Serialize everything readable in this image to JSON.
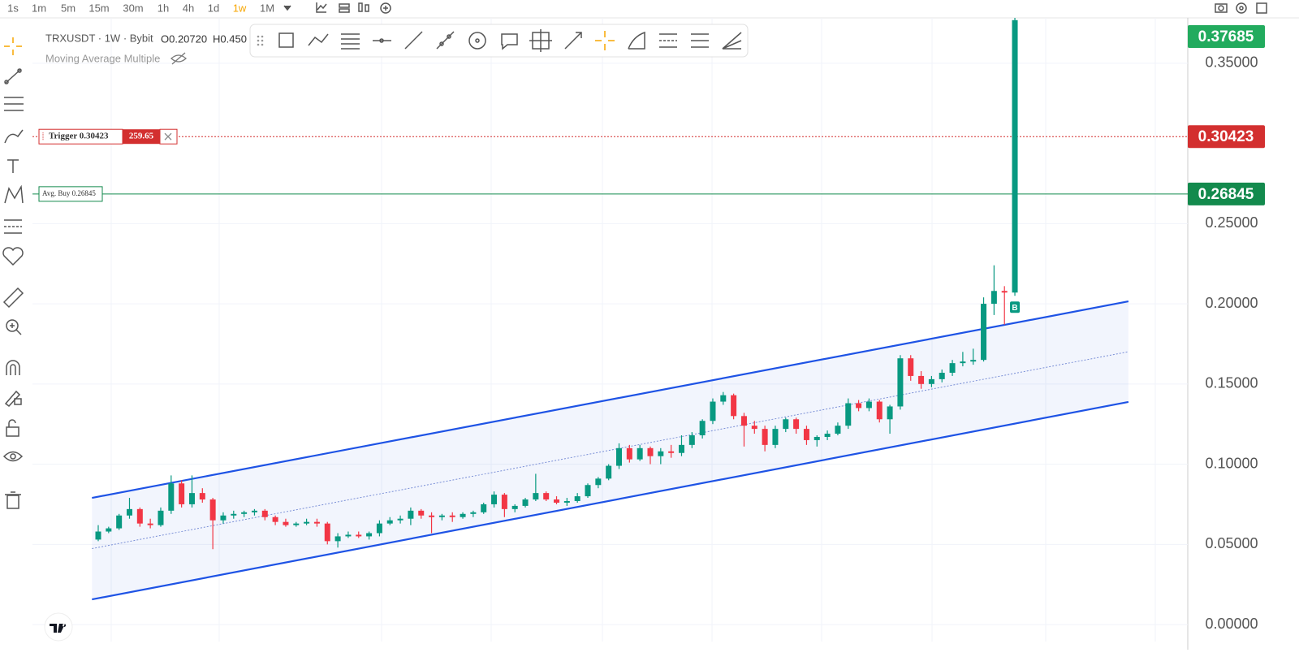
{
  "toolbar": {
    "intervals": [
      "1s",
      "1m",
      "5m",
      "15m",
      "30m",
      "1h",
      "4h",
      "1d",
      "1w",
      "1M"
    ],
    "active_interval": 8
  },
  "legend": {
    "symbol": "TRXUSDT · 1W · Bybit",
    "ohlc_text": [
      "O0.20720",
      "H0.450"
    ],
    "indicator": "Moving Average Multiple"
  },
  "chart_data": {
    "type": "candlestick",
    "up_color": "#089981",
    "down_color": "#f23645",
    "ylim": [
      -0.0106,
      0.3732
    ],
    "yticks": [
      {
        "value": 0,
        "label": "0.00000"
      },
      {
        "value": 0.05,
        "label": "0.05000"
      },
      {
        "value": 0.1,
        "label": "0.10000"
      },
      {
        "value": 0.15,
        "label": "0.15000"
      },
      {
        "value": 0.2,
        "label": "0.20000"
      },
      {
        "value": 0.25,
        "label": "0.25000"
      },
      {
        "value": 0.35,
        "label": "0.35000"
      }
    ],
    "grid": true,
    "ohlc": [
      [
        0.053,
        0.062,
        0.052,
        0.058
      ],
      [
        0.058,
        0.061,
        0.057,
        0.06
      ],
      [
        0.06,
        0.069,
        0.059,
        0.068
      ],
      [
        0.068,
        0.079,
        0.066,
        0.072
      ],
      [
        0.072,
        0.073,
        0.061,
        0.063
      ],
      [
        0.063,
        0.066,
        0.06,
        0.062
      ],
      [
        0.062,
        0.073,
        0.061,
        0.071
      ],
      [
        0.071,
        0.093,
        0.069,
        0.088
      ],
      [
        0.088,
        0.09,
        0.073,
        0.075
      ],
      [
        0.075,
        0.093,
        0.073,
        0.082
      ],
      [
        0.082,
        0.085,
        0.076,
        0.078
      ],
      [
        0.078,
        0.079,
        0.047,
        0.065
      ],
      [
        0.065,
        0.07,
        0.063,
        0.068
      ],
      [
        0.068,
        0.071,
        0.066,
        0.069
      ],
      [
        0.069,
        0.071,
        0.067,
        0.07
      ],
      [
        0.07,
        0.072,
        0.068,
        0.071
      ],
      [
        0.071,
        0.072,
        0.065,
        0.067
      ],
      [
        0.067,
        0.068,
        0.062,
        0.064
      ],
      [
        0.064,
        0.066,
        0.061,
        0.062
      ],
      [
        0.062,
        0.064,
        0.061,
        0.063
      ],
      [
        0.063,
        0.066,
        0.062,
        0.064
      ],
      [
        0.064,
        0.066,
        0.061,
        0.063
      ],
      [
        0.063,
        0.064,
        0.05,
        0.052
      ],
      [
        0.052,
        0.057,
        0.048,
        0.055
      ],
      [
        0.055,
        0.058,
        0.054,
        0.056
      ],
      [
        0.056,
        0.058,
        0.054,
        0.055
      ],
      [
        0.055,
        0.058,
        0.053,
        0.057
      ],
      [
        0.057,
        0.065,
        0.055,
        0.063
      ],
      [
        0.063,
        0.067,
        0.062,
        0.065
      ],
      [
        0.065,
        0.068,
        0.063,
        0.066
      ],
      [
        0.066,
        0.073,
        0.062,
        0.071
      ],
      [
        0.071,
        0.072,
        0.066,
        0.068
      ],
      [
        0.068,
        0.07,
        0.057,
        0.067
      ],
      [
        0.067,
        0.069,
        0.065,
        0.068
      ],
      [
        0.068,
        0.07,
        0.064,
        0.067
      ],
      [
        0.067,
        0.07,
        0.066,
        0.069
      ],
      [
        0.069,
        0.071,
        0.067,
        0.07
      ],
      [
        0.07,
        0.076,
        0.069,
        0.075
      ],
      [
        0.075,
        0.083,
        0.073,
        0.081
      ],
      [
        0.081,
        0.082,
        0.067,
        0.072
      ],
      [
        0.072,
        0.075,
        0.07,
        0.074
      ],
      [
        0.074,
        0.079,
        0.073,
        0.078
      ],
      [
        0.078,
        0.094,
        0.077,
        0.082
      ],
      [
        0.082,
        0.083,
        0.077,
        0.078
      ],
      [
        0.078,
        0.08,
        0.075,
        0.076
      ],
      [
        0.076,
        0.079,
        0.074,
        0.077
      ],
      [
        0.077,
        0.082,
        0.076,
        0.08
      ],
      [
        0.08,
        0.088,
        0.079,
        0.087
      ],
      [
        0.087,
        0.092,
        0.085,
        0.091
      ],
      [
        0.091,
        0.1,
        0.09,
        0.099
      ],
      [
        0.099,
        0.113,
        0.097,
        0.11
      ],
      [
        0.11,
        0.112,
        0.101,
        0.103
      ],
      [
        0.103,
        0.112,
        0.102,
        0.11
      ],
      [
        0.11,
        0.111,
        0.1,
        0.105
      ],
      [
        0.105,
        0.11,
        0.1,
        0.108
      ],
      [
        0.108,
        0.112,
        0.104,
        0.107
      ],
      [
        0.107,
        0.118,
        0.105,
        0.112
      ],
      [
        0.112,
        0.12,
        0.11,
        0.118
      ],
      [
        0.118,
        0.128,
        0.116,
        0.127
      ],
      [
        0.127,
        0.141,
        0.125,
        0.139
      ],
      [
        0.139,
        0.145,
        0.137,
        0.143
      ],
      [
        0.143,
        0.144,
        0.128,
        0.13
      ],
      [
        0.13,
        0.132,
        0.111,
        0.124
      ],
      [
        0.124,
        0.127,
        0.119,
        0.122
      ],
      [
        0.122,
        0.124,
        0.108,
        0.112
      ],
      [
        0.112,
        0.124,
        0.11,
        0.122
      ],
      [
        0.122,
        0.129,
        0.12,
        0.128
      ],
      [
        0.128,
        0.129,
        0.119,
        0.122
      ],
      [
        0.122,
        0.124,
        0.112,
        0.115
      ],
      [
        0.115,
        0.118,
        0.111,
        0.117
      ],
      [
        0.117,
        0.121,
        0.115,
        0.119
      ],
      [
        0.119,
        0.126,
        0.118,
        0.124
      ],
      [
        0.124,
        0.141,
        0.122,
        0.138
      ],
      [
        0.138,
        0.14,
        0.133,
        0.135
      ],
      [
        0.135,
        0.141,
        0.133,
        0.139
      ],
      [
        0.139,
        0.14,
        0.126,
        0.128
      ],
      [
        0.128,
        0.137,
        0.119,
        0.136
      ],
      [
        0.136,
        0.168,
        0.134,
        0.166
      ],
      [
        0.166,
        0.168,
        0.152,
        0.155
      ],
      [
        0.155,
        0.158,
        0.147,
        0.15
      ],
      [
        0.15,
        0.155,
        0.148,
        0.153
      ],
      [
        0.153,
        0.159,
        0.151,
        0.157
      ],
      [
        0.157,
        0.165,
        0.155,
        0.163
      ],
      [
        0.163,
        0.17,
        0.161,
        0.164
      ],
      [
        0.164,
        0.172,
        0.162,
        0.165
      ],
      [
        0.165,
        0.204,
        0.164,
        0.2
      ],
      [
        0.2,
        0.224,
        0.193,
        0.208
      ],
      [
        0.208,
        0.211,
        0.187,
        0.207
      ],
      [
        0.207,
        0.45,
        0.205,
        0.37685
      ]
    ],
    "channel": {
      "x": [
        -0.6,
        98.9
      ],
      "upper": [
        0.079,
        0.2015
      ],
      "middle": [
        0.0474,
        0.1701
      ],
      "lower": [
        0.0157,
        0.1388
      ],
      "color": "#1e53e5"
    },
    "price_lines": [
      {
        "label": "Trigger 0.30423",
        "value": 0.30423,
        "qty": 259.65,
        "color": "#d32f2f",
        "style": "dotted"
      },
      {
        "label": "Avg. Buy 0.26845",
        "value": 0.26845,
        "color": "#138a4d",
        "style": "solid"
      }
    ],
    "last_price": {
      "value": 0.37685,
      "color": "#22ab5e"
    },
    "markers": [
      {
        "index": 88,
        "text": "B"
      }
    ]
  }
}
